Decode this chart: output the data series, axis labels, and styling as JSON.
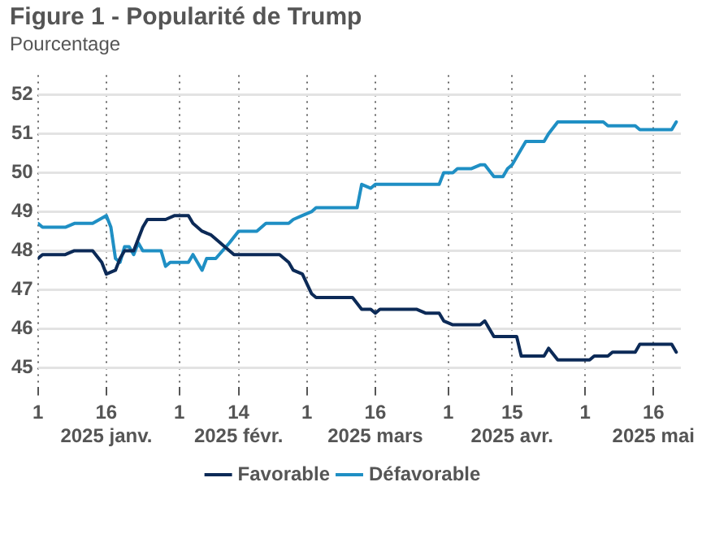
{
  "chart_data": {
    "type": "line",
    "title": "Figure 1 - Popularité de Trump",
    "ylabel": "Pourcentage",
    "xlim": [
      "2025-01-01",
      "2025-05-22"
    ],
    "xticks": [
      {
        "value": "2025-01-01",
        "label": "1"
      },
      {
        "value": "2025-01-16",
        "label": "16\n2025 janv."
      },
      {
        "value": "2025-02-01",
        "label": "1"
      },
      {
        "value": "2025-02-14",
        "label": "14\n2025 févr."
      },
      {
        "value": "2025-03-01",
        "label": "1"
      },
      {
        "value": "2025-03-16",
        "label": "16\n2025 mars"
      },
      {
        "value": "2025-04-01",
        "label": "1"
      },
      {
        "value": "2025-04-15",
        "label": "15\n2025 avr."
      },
      {
        "value": "2025-05-01",
        "label": "1"
      },
      {
        "value": "2025-05-16",
        "label": "16\n2025 mai"
      }
    ],
    "ylim": [
      44.5,
      52.5
    ],
    "yticks": [
      45,
      46,
      47,
      48,
      49,
      50,
      51,
      52
    ],
    "grid": true,
    "legend": "bottom",
    "marker": "none",
    "line_style": "solid",
    "series": [
      {
        "name": "Favorable",
        "color": "#0c2a57",
        "x": [
          "2025-01-01",
          "2025-01-02",
          "2025-01-07",
          "2025-01-09",
          "2025-01-13",
          "2025-01-15",
          "2025-01-16",
          "2025-01-18",
          "2025-01-19",
          "2025-01-20",
          "2025-01-22",
          "2025-01-24",
          "2025-01-25",
          "2025-01-29",
          "2025-01-31",
          "2025-02-03",
          "2025-02-04",
          "2025-02-06",
          "2025-02-08",
          "2025-02-09",
          "2025-02-12",
          "2025-02-13",
          "2025-02-23",
          "2025-02-25",
          "2025-02-26",
          "2025-02-28",
          "2025-03-02",
          "2025-03-03",
          "2025-03-11",
          "2025-03-13",
          "2025-03-15",
          "2025-03-16",
          "2025-03-17",
          "2025-03-25",
          "2025-03-27",
          "2025-03-30",
          "2025-03-31",
          "2025-04-02",
          "2025-04-08",
          "2025-04-09",
          "2025-04-11",
          "2025-04-16",
          "2025-04-17",
          "2025-04-22",
          "2025-04-23",
          "2025-04-25",
          "2025-05-02",
          "2025-05-03",
          "2025-05-06",
          "2025-05-07",
          "2025-05-12",
          "2025-05-13",
          "2025-05-20",
          "2025-05-21"
        ],
        "values": [
          47.8,
          47.9,
          47.9,
          48.0,
          48.0,
          47.7,
          47.4,
          47.5,
          47.8,
          48.0,
          48.0,
          48.6,
          48.8,
          48.8,
          48.9,
          48.9,
          48.7,
          48.5,
          48.4,
          48.3,
          48.0,
          47.9,
          47.9,
          47.7,
          47.5,
          47.4,
          46.9,
          46.8,
          46.8,
          46.5,
          46.5,
          46.4,
          46.5,
          46.5,
          46.4,
          46.4,
          46.2,
          46.1,
          46.1,
          46.2,
          45.8,
          45.8,
          45.3,
          45.3,
          45.5,
          45.2,
          45.2,
          45.3,
          45.3,
          45.4,
          45.4,
          45.6,
          45.6,
          45.4
        ]
      },
      {
        "name": "Défavorable",
        "color": "#1f8fc4",
        "x": [
          "2025-01-01",
          "2025-01-02",
          "2025-01-07",
          "2025-01-09",
          "2025-01-13",
          "2025-01-16",
          "2025-01-17",
          "2025-01-18",
          "2025-01-19",
          "2025-01-20",
          "2025-01-21",
          "2025-01-22",
          "2025-01-23",
          "2025-01-24",
          "2025-01-28",
          "2025-01-29",
          "2025-01-30",
          "2025-02-03",
          "2025-02-04",
          "2025-02-06",
          "2025-02-07",
          "2025-02-09",
          "2025-02-12",
          "2025-02-14",
          "2025-02-18",
          "2025-02-20",
          "2025-02-25",
          "2025-02-26",
          "2025-02-28",
          "2025-03-02",
          "2025-03-03",
          "2025-03-12",
          "2025-03-13",
          "2025-03-15",
          "2025-03-16",
          "2025-03-30",
          "2025-03-31",
          "2025-04-02",
          "2025-04-03",
          "2025-04-06",
          "2025-04-08",
          "2025-04-09",
          "2025-04-11",
          "2025-04-13",
          "2025-04-14",
          "2025-04-15",
          "2025-04-17",
          "2025-04-18",
          "2025-04-22",
          "2025-04-23",
          "2025-04-25",
          "2025-05-05",
          "2025-05-06",
          "2025-05-12",
          "2025-05-13",
          "2025-05-20",
          "2025-05-21"
        ],
        "values": [
          48.7,
          48.6,
          48.6,
          48.7,
          48.7,
          48.9,
          48.6,
          47.8,
          47.7,
          48.1,
          48.1,
          47.9,
          48.2,
          48.0,
          48.0,
          47.6,
          47.7,
          47.7,
          47.9,
          47.5,
          47.8,
          47.8,
          48.2,
          48.5,
          48.5,
          48.7,
          48.7,
          48.8,
          48.9,
          49.0,
          49.1,
          49.1,
          49.7,
          49.6,
          49.7,
          49.7,
          50.0,
          50.0,
          50.1,
          50.1,
          50.2,
          50.2,
          49.9,
          49.9,
          50.1,
          50.2,
          50.6,
          50.8,
          50.8,
          51.0,
          51.3,
          51.3,
          51.2,
          51.2,
          51.1,
          51.1,
          51.3
        ]
      }
    ]
  }
}
